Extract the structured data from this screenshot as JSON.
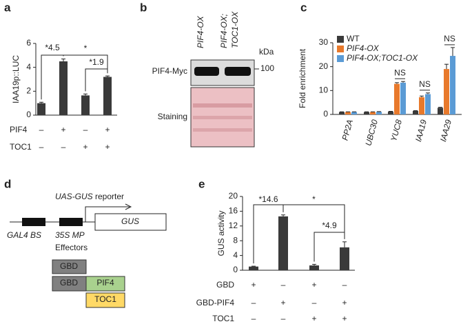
{
  "chart_data": [
    {
      "type": "bar",
      "panel": "a",
      "ylabel": "IAA19p::LUC",
      "color": "#3a3a3a",
      "values": [
        1.0,
        4.5,
        1.65,
        3.2
      ],
      "errors": [
        0.08,
        0.2,
        0.12,
        0.08
      ],
      "ylim": [
        0,
        6
      ],
      "yticks": [
        0,
        2,
        4,
        6
      ],
      "conditions": [
        {
          "name": "PIF4",
          "marks": [
            "–",
            "+",
            "–",
            "+"
          ]
        },
        {
          "name": "TOC1",
          "marks": [
            "–",
            "–",
            "+",
            "+"
          ]
        }
      ],
      "annotations": [
        "*4.5",
        "*",
        "*1.9"
      ]
    },
    {
      "type": "grouped_bar",
      "panel": "c",
      "ylabel": "Fold enrichment",
      "categories": [
        "PP2A",
        "UBC30",
        "YUC8",
        "IAA19",
        "IAA29"
      ],
      "series": [
        {
          "name": "WT",
          "color": "#3a3a3a",
          "values": [
            1.0,
            1.0,
            1.2,
            1.5,
            2.8
          ],
          "errors": [
            0.1,
            0.1,
            0.1,
            0.1,
            0.2
          ]
        },
        {
          "name": "PIF4-OX",
          "color": "#e8792b",
          "values": [
            1.0,
            1.0,
            12.8,
            7.2,
            19.0
          ],
          "errors": [
            0.1,
            0.1,
            0.5,
            0.5,
            2.0
          ]
        },
        {
          "name": "PIF4-OX;TOC1-OX",
          "color": "#5b9bd5",
          "values": [
            1.0,
            1.1,
            13.3,
            8.5,
            24.5
          ],
          "errors": [
            0.1,
            0.1,
            0.5,
            0.5,
            3.5
          ]
        }
      ],
      "ylim": [
        0,
        30
      ],
      "yticks": [
        0,
        10,
        20,
        30
      ],
      "legend": "upper left",
      "annotations": [
        "NS",
        "NS",
        "NS"
      ]
    },
    {
      "type": "bar",
      "panel": "e",
      "ylabel": "GUS activity",
      "color": "#3a3a3a",
      "values": [
        1.0,
        14.6,
        1.3,
        6.2
      ],
      "errors": [
        0.1,
        0.4,
        0.3,
        1.5
      ],
      "ylim": [
        0,
        20
      ],
      "yticks": [
        0,
        4,
        8,
        12,
        16,
        20
      ],
      "conditions": [
        {
          "name": "GBD",
          "marks": [
            "+",
            "–",
            "+",
            "–"
          ]
        },
        {
          "name": "GBD-PIF4",
          "marks": [
            "–",
            "+",
            "–",
            "+"
          ]
        },
        {
          "name": "TOC1",
          "marks": [
            "–",
            "–",
            "+",
            "+"
          ]
        }
      ],
      "annotations": [
        "*14.6",
        "*",
        "*4.9"
      ]
    }
  ],
  "blot": {
    "panel": "b",
    "columns": [
      "PIF4-OX",
      "PIF4-OX;",
      "TOC1-OX"
    ],
    "unit": "kDa",
    "marker": "100",
    "rows": [
      "PIF4-Myc",
      "Staining"
    ]
  },
  "diagram": {
    "panel": "d",
    "reporter": "UAS-GUS",
    "reporter_suffix": "reporter",
    "elements": [
      "GAL4 BS",
      "35S MP"
    ],
    "gene": "GUS",
    "effectors_title": "Effectors",
    "effectors": [
      "GBD",
      "GBD",
      "PIF4",
      "TOC1"
    ]
  }
}
